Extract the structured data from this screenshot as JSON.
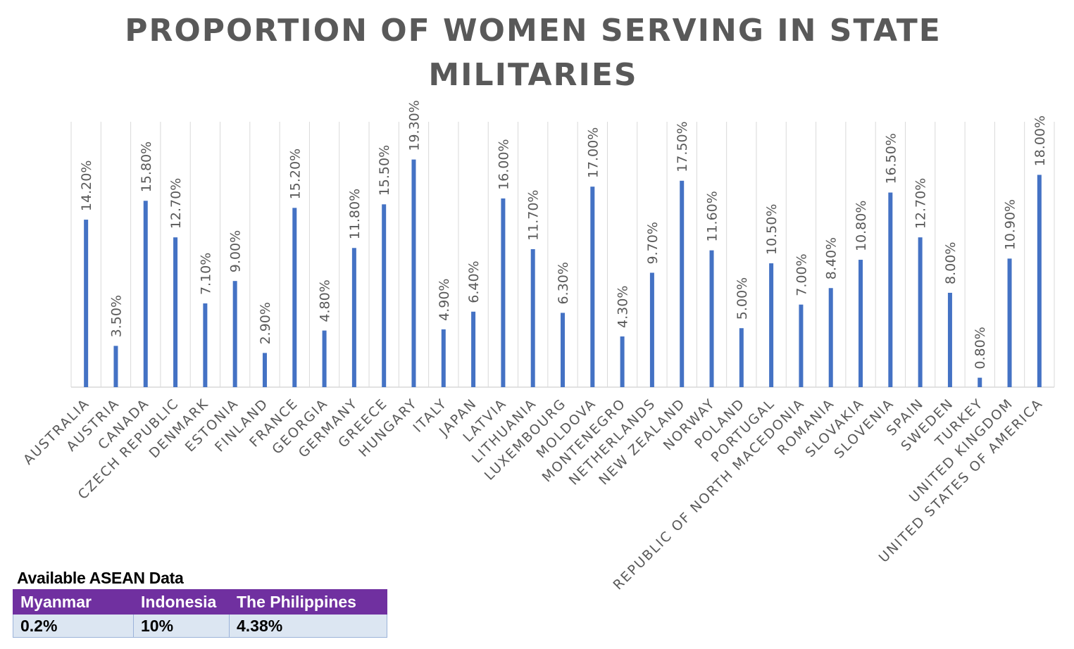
{
  "chart_data": {
    "type": "bar",
    "title_lines": [
      "PROPORTION OF WOMEN SERVING IN STATE",
      "MILITARIES"
    ],
    "xlabel": "",
    "ylabel": "",
    "ylim": [
      0,
      22.5
    ],
    "grid": "vertical",
    "bar_color": "#4472c4",
    "categories": [
      "AUSTRALIA",
      "AUSTRIA",
      "CANADA",
      "CZECH REPUBLIC",
      "DENMARK",
      "ESTONIA",
      "FINLAND",
      "FRANCE",
      "GEORGIA",
      "GERMANY",
      "GREECE",
      "HUNGARY",
      "ITALY",
      "JAPAN",
      "LATVIA",
      "LITHUANIA",
      "LUXEMBOURG",
      "MOLDOVA",
      "MONTENEGRO",
      "NETHERLANDS",
      "NEW ZEALAND",
      "NORWAY",
      "POLAND",
      "PORTUGAL",
      "REPUBLIC OF NORTH MACEDONIA",
      "ROMANIA",
      "SLOVAKIA",
      "SLOVENIA",
      "SPAIN",
      "SWEDEN",
      "TURKEY",
      "UNITED KINGDOM",
      "UNITED STATES OF AMERICA"
    ],
    "values": [
      14.2,
      3.5,
      15.8,
      12.7,
      7.1,
      9.0,
      2.9,
      15.2,
      4.8,
      11.8,
      15.5,
      19.3,
      4.9,
      6.4,
      16.0,
      11.7,
      6.3,
      17.0,
      4.3,
      9.7,
      17.5,
      11.6,
      5.0,
      10.5,
      7.0,
      8.4,
      10.8,
      16.5,
      12.7,
      8.0,
      0.8,
      10.9,
      18.0
    ],
    "data_labels": [
      "14.20%",
      "3.50%",
      "15.80%",
      "12.70%",
      "7.10%",
      "9.00%",
      "2.90%",
      "15.20%",
      "4.80%",
      "11.80%",
      "15.50%",
      "19.30%",
      "4.90%",
      "6.40%",
      "16.00%",
      "11.70%",
      "6.30%",
      "17.00%",
      "4.30%",
      "9.70%",
      "17.50%",
      "11.60%",
      "5.00%",
      "10.50%",
      "7.00%",
      "8.40%",
      "10.80%",
      "16.50%",
      "12.70%",
      "8.00%",
      "0.80%",
      "10.90%",
      "18.00%"
    ]
  },
  "asean_table": {
    "title": "Available ASEAN Data",
    "headers": [
      "Myanmar",
      "Indonesia",
      "The Philippines"
    ],
    "values": [
      "0.2%",
      "10%",
      "4.38%"
    ],
    "header_color": "#7030a0",
    "cell_color": "#dce6f2"
  }
}
